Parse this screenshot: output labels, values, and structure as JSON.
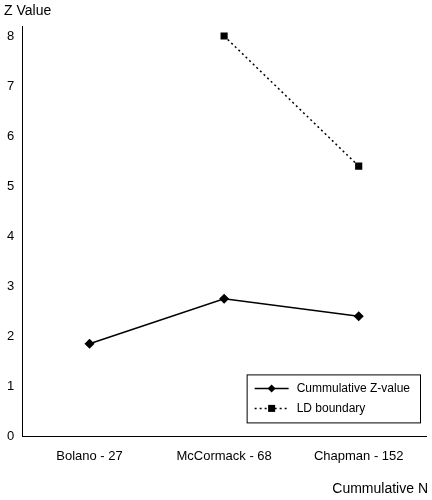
{
  "chart_data": {
    "type": "line",
    "y_label": "Z Value",
    "x_label": "Cummulative N",
    "categories": [
      "Bolano - 27",
      "McCormack - 68",
      "Chapman - 152"
    ],
    "series": [
      {
        "name": "Cummulative Z-value",
        "color": "#000000",
        "marker": "diamond",
        "line_style": "solid",
        "values": [
          1.85,
          2.75,
          2.4
        ]
      },
      {
        "name": "LD boundary",
        "color": "#000000",
        "marker": "square",
        "line_style": "dotted",
        "values": [
          null,
          8.0,
          5.4
        ]
      }
    ],
    "ylim": [
      0,
      8.2
    ],
    "yticks": [
      0,
      1,
      2,
      3,
      4,
      5,
      6,
      7,
      8
    ],
    "grid": false,
    "legend": "bottom-right"
  }
}
